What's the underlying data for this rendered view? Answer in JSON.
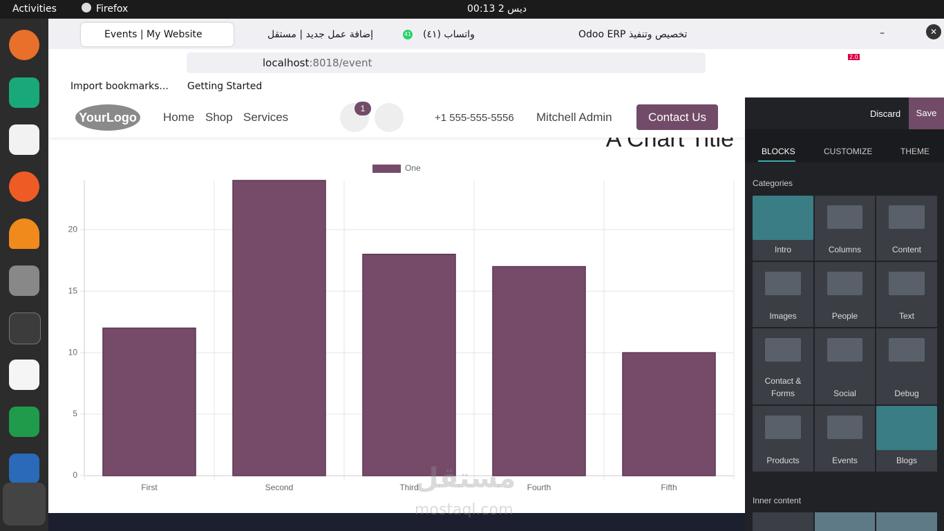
{
  "system_bar": {
    "activities": "Activities",
    "app": "Firefox",
    "clock": "ديس 2  00:13"
  },
  "browser": {
    "tabs": [
      "Events | My Website",
      "إضافة عمل جديد | مستقل",
      "واتساب (٤١)",
      "Odoo ERP تخصيص وتنفيذ"
    ],
    "tab_badge": "41",
    "url_host": "localhost",
    "url_path": ":8018/event",
    "bookmarks": [
      "Import bookmarks...",
      "Getting Started"
    ],
    "extension_badge": "2.0"
  },
  "website": {
    "logo": "YourLogo",
    "menu": [
      "Home",
      "Shop",
      "Services"
    ],
    "cart_count": 1,
    "phone": "+1 555-555-5556",
    "user": "Mitchell Admin",
    "cta": "Contact Us"
  },
  "chart_data": {
    "type": "bar",
    "title": "A Chart Title",
    "categories": [
      "First",
      "Second",
      "Third",
      "Fourth",
      "Fifth"
    ],
    "series": [
      {
        "name": "One",
        "color": "#764b6a",
        "values": [
          12,
          24,
          18,
          17,
          10
        ]
      }
    ],
    "ylim": [
      0,
      24
    ],
    "yticks": [
      0,
      5,
      10,
      15,
      20
    ],
    "grid": true,
    "legend": "top"
  },
  "editor": {
    "discard": "Discard",
    "save": "Save",
    "tabs": [
      "BLOCKS",
      "CUSTOMIZE",
      "THEME"
    ],
    "categories_label": "Categories",
    "blocks": [
      "Intro",
      "Columns",
      "Content",
      "Images",
      "People",
      "Text",
      "Contact & Forms",
      "Social",
      "Debug",
      "Products",
      "Events",
      "Blogs"
    ],
    "inner_content_label": "Inner content"
  },
  "watermark": {
    "arabic": "مستقل",
    "latin": "mostaql.com"
  }
}
